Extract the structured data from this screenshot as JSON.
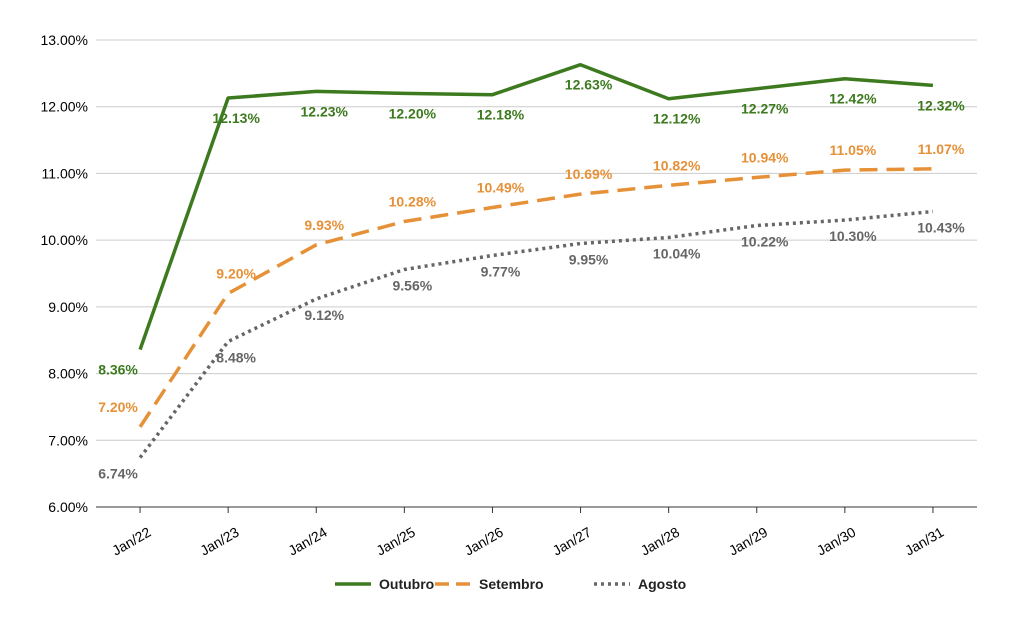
{
  "chart_data": {
    "type": "line",
    "categories": [
      "Jan/22",
      "Jan/23",
      "Jan/24",
      "Jan/25",
      "Jan/26",
      "Jan/27",
      "Jan/28",
      "Jan/29",
      "Jan/30",
      "Jan/31"
    ],
    "y_ticks": [
      "6.00%",
      "7.00%",
      "8.00%",
      "9.00%",
      "10.00%",
      "11.00%",
      "12.00%",
      "13.00%"
    ],
    "ylim": [
      6,
      13
    ],
    "grid": true,
    "legend_position": "bottom",
    "series": [
      {
        "name": "Outubro",
        "color": "#3d7a1f",
        "style": "solid",
        "values": [
          8.36,
          12.13,
          12.23,
          12.2,
          12.18,
          12.63,
          12.12,
          12.27,
          12.42,
          12.32
        ],
        "labels": [
          "8.36%",
          "12.13%",
          "12.23%",
          "12.20%",
          "12.18%",
          "12.63%",
          "12.12%",
          "12.27%",
          "12.42%",
          "12.32%"
        ]
      },
      {
        "name": "Setembro",
        "color": "#e69138",
        "style": "dashed",
        "values": [
          7.2,
          9.2,
          9.93,
          10.28,
          10.49,
          10.69,
          10.82,
          10.94,
          11.05,
          11.07
        ],
        "labels": [
          "7.20%",
          "9.20%",
          "9.93%",
          "10.28%",
          "10.49%",
          "10.69%",
          "10.82%",
          "10.94%",
          "11.05%",
          "11.07%"
        ]
      },
      {
        "name": "Agosto",
        "color": "#666666",
        "style": "dotted",
        "values": [
          6.74,
          8.48,
          9.12,
          9.56,
          9.77,
          9.95,
          10.04,
          10.22,
          10.3,
          10.43
        ],
        "labels": [
          "6.74%",
          "8.48%",
          "9.12%",
          "9.56%",
          "9.77%",
          "9.95%",
          "10.04%",
          "10.22%",
          "10.30%",
          "10.43%"
        ]
      }
    ]
  }
}
